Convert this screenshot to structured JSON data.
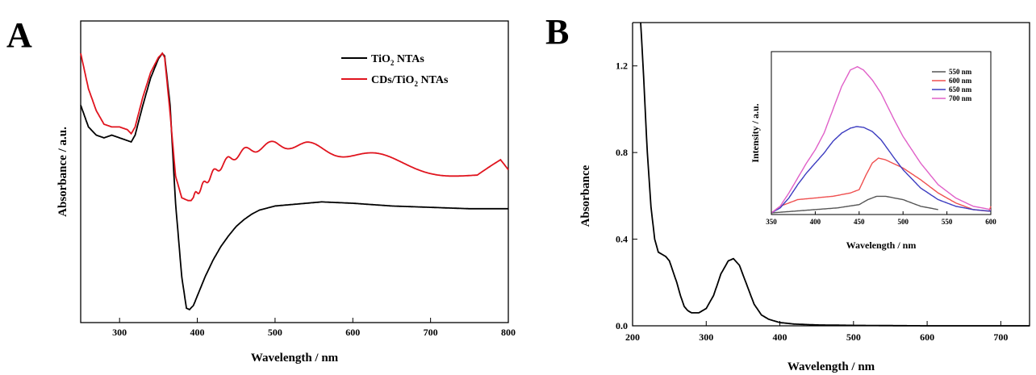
{
  "chart_data": [
    {
      "panel": "A",
      "type": "line",
      "xlabel": "Wavelength / nm",
      "ylabel": "Absorbance / a.u.",
      "xlim": [
        250,
        800
      ],
      "ylim": [
        0,
        1
      ],
      "xticks": [
        300,
        400,
        500,
        600,
        700,
        800
      ],
      "yticks": [],
      "grid": false,
      "legend_position": "top-right",
      "series": [
        {
          "name": "TiO2 NTAs",
          "name_main": "TiO",
          "name_sub": "2",
          "name_tail": " NTAs",
          "color": "#000000",
          "x": [
            250,
            260,
            270,
            280,
            290,
            300,
            310,
            315,
            320,
            330,
            340,
            350,
            355,
            358,
            365,
            372,
            380,
            386,
            390,
            395,
            400,
            410,
            420,
            430,
            440,
            450,
            460,
            470,
            480,
            500,
            520,
            540,
            560,
            600,
            650,
            700,
            750,
            800
          ],
          "y": [
            0.78,
            0.7,
            0.67,
            0.66,
            0.67,
            0.66,
            0.65,
            0.645,
            0.67,
            0.78,
            0.88,
            0.95,
            0.97,
            0.96,
            0.78,
            0.42,
            0.15,
            0.035,
            0.03,
            0.045,
            0.08,
            0.15,
            0.21,
            0.26,
            0.3,
            0.335,
            0.36,
            0.38,
            0.395,
            0.41,
            0.415,
            0.42,
            0.425,
            0.42,
            0.41,
            0.405,
            0.4,
            0.4
          ]
        },
        {
          "name": "CDs/TiO2 NTAs",
          "name_main": "CDs/TiO",
          "name_sub": "2",
          "name_tail": " NTAs",
          "color": "#e0141e",
          "x": [
            250,
            260,
            270,
            280,
            290,
            300,
            310,
            315,
            320,
            330,
            340,
            350,
            355,
            358,
            365,
            372,
            380,
            388,
            392,
            400,
            420,
            440,
            460,
            480,
            500,
            520,
            540,
            560,
            600,
            640,
            680,
            720,
            760,
            790,
            800
          ],
          "y": [
            0.97,
            0.84,
            0.76,
            0.71,
            0.7,
            0.7,
            0.69,
            0.675,
            0.7,
            0.81,
            0.9,
            0.955,
            0.97,
            0.955,
            0.75,
            0.52,
            0.44,
            0.43,
            0.43,
            0.46,
            0.53,
            0.58,
            0.61,
            0.625,
            0.635,
            0.635,
            0.63,
            0.62,
            0.6,
            0.58,
            0.56,
            0.54,
            0.52,
            0.56,
            0.52
          ],
          "oscillation_amplitude": 0.018
        }
      ]
    },
    {
      "panel": "B",
      "type": "line",
      "xlabel": "Wavelength / nm",
      "ylabel": "Absorbance",
      "xlim": [
        200,
        750
      ],
      "ylim": [
        0,
        1.4
      ],
      "xticks": [
        200,
        300,
        400,
        500,
        600,
        700
      ],
      "yticks": [
        0.0,
        0.4,
        0.8,
        1.2
      ],
      "ytick_labels": [
        "0.0",
        "0.4",
        "0.8",
        "1.2"
      ],
      "grid": false,
      "series": [
        {
          "color": "#000000",
          "x": [
            211,
            215,
            220,
            225,
            230,
            235,
            240,
            245,
            250,
            255,
            260,
            265,
            270,
            275,
            280,
            290,
            300,
            310,
            320,
            330,
            337,
            345,
            355,
            365,
            375,
            385,
            400,
            420,
            450,
            500,
            550,
            600,
            650,
            700,
            750
          ],
          "y": [
            1.4,
            1.15,
            0.8,
            0.55,
            0.4,
            0.34,
            0.33,
            0.32,
            0.3,
            0.25,
            0.2,
            0.14,
            0.09,
            0.07,
            0.06,
            0.06,
            0.08,
            0.14,
            0.24,
            0.3,
            0.31,
            0.28,
            0.19,
            0.1,
            0.05,
            0.03,
            0.015,
            0.008,
            0.004,
            0.002,
            0.001,
            0.0,
            0.0,
            0.0,
            0.0
          ]
        }
      ],
      "inset": {
        "xlabel": "Wavelength / nm",
        "ylabel": "Intensity / a.u.",
        "xlim": [
          350,
          600
        ],
        "ylim": [
          0,
          1
        ],
        "xticks": [
          350,
          400,
          450,
          500,
          550,
          600
        ],
        "legend_position": "top-right",
        "series": [
          {
            "name": "550 nm",
            "color": "#555555",
            "x": [
              350,
              375,
              400,
              425,
              450,
              460,
              470,
              480,
              500,
              520,
              540
            ],
            "y": [
              0.0,
              0.01,
              0.02,
              0.03,
              0.05,
              0.08,
              0.1,
              0.1,
              0.08,
              0.04,
              0.02
            ]
          },
          {
            "name": "600 nm",
            "color": "#ef5050",
            "x": [
              350,
              360,
              380,
              400,
              420,
              440,
              450,
              458,
              465,
              472,
              480,
              500,
              520,
              540,
              560,
              580,
              598,
              600
            ],
            "y": [
              0.0,
              0.04,
              0.08,
              0.09,
              0.1,
              0.12,
              0.14,
              0.23,
              0.3,
              0.33,
              0.32,
              0.27,
              0.2,
              0.12,
              0.06,
              0.02,
              0.01,
              0.04
            ]
          },
          {
            "name": "650 nm",
            "color": "#3c3cc0",
            "x": [
              350,
              360,
              370,
              380,
              390,
              400,
              410,
              420,
              430,
              440,
              447,
              455,
              465,
              475,
              490,
              500,
              520,
              540,
              560,
              580,
              600
            ],
            "y": [
              0.0,
              0.03,
              0.09,
              0.17,
              0.24,
              0.3,
              0.36,
              0.43,
              0.48,
              0.51,
              0.52,
              0.515,
              0.49,
              0.44,
              0.33,
              0.26,
              0.15,
              0.08,
              0.04,
              0.02,
              0.01
            ]
          },
          {
            "name": "700 nm",
            "color": "#e060c8",
            "x": [
              350,
              360,
              370,
              380,
              390,
              400,
              410,
              420,
              430,
              440,
              448,
              455,
              465,
              475,
              490,
              500,
              520,
              540,
              560,
              580,
              600
            ],
            "y": [
              0.0,
              0.04,
              0.12,
              0.21,
              0.3,
              0.38,
              0.48,
              0.62,
              0.76,
              0.86,
              0.88,
              0.86,
              0.8,
              0.72,
              0.56,
              0.46,
              0.3,
              0.17,
              0.09,
              0.04,
              0.02
            ]
          }
        ]
      }
    }
  ]
}
